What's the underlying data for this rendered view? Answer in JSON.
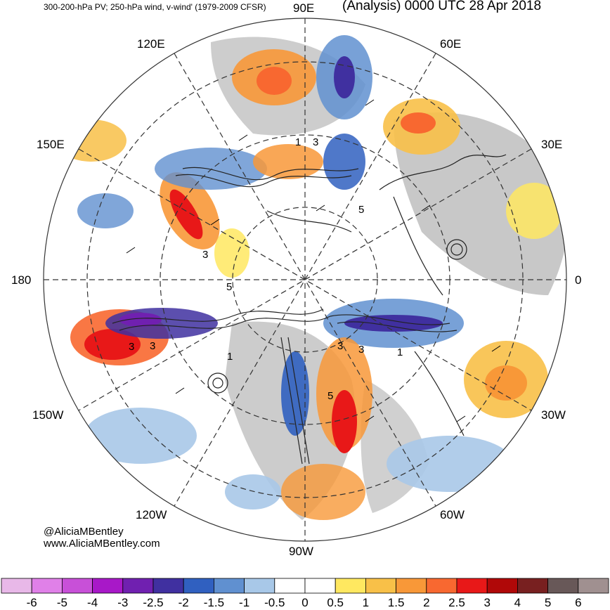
{
  "header": {
    "left_title": "300-200-hPa PV; 250-hPa wind, v-wind' (1979-2009 CFSR)",
    "right_title": "(Analysis) 0000 UTC 28 Apr 2018"
  },
  "credits": {
    "handle": "@AliciaMBentley",
    "website": "www.AliciaMBentley.com"
  },
  "longitude_labels": {
    "top": "90E",
    "top_right": "60E",
    "right_upper": "30E",
    "right": "0",
    "right_lower": "30W",
    "bottom_right": "60W",
    "bottom": "90W",
    "bottom_left": "120W",
    "left_lower": "150W",
    "left": "180",
    "left_upper": "150E",
    "top_left": "120E"
  },
  "contour_labels": [
    "3",
    "1",
    "3",
    "5",
    "3",
    "5",
    "3",
    "1",
    "3",
    "1",
    "5",
    "3"
  ],
  "colorbar": {
    "colors": [
      "#e8b8e8",
      "#e080e8",
      "#c850d8",
      "#a818c8",
      "#7020b0",
      "#4030a0",
      "#3060c0",
      "#6090d0",
      "#a8c8e8",
      "#ffffff",
      "#ffffff",
      "#ffe860",
      "#f8c048",
      "#f89838",
      "#f86830",
      "#e81818",
      "#b00808",
      "#782020",
      "#685858",
      "#a09090"
    ],
    "labels": [
      "-6",
      "-5",
      "-4",
      "-3",
      "-2.5",
      "-2",
      "-1.5",
      "-1",
      "-0.5",
      "0",
      "0.5",
      "1",
      "1.5",
      "2",
      "2.5",
      "3",
      "4",
      "5",
      "6"
    ]
  }
}
